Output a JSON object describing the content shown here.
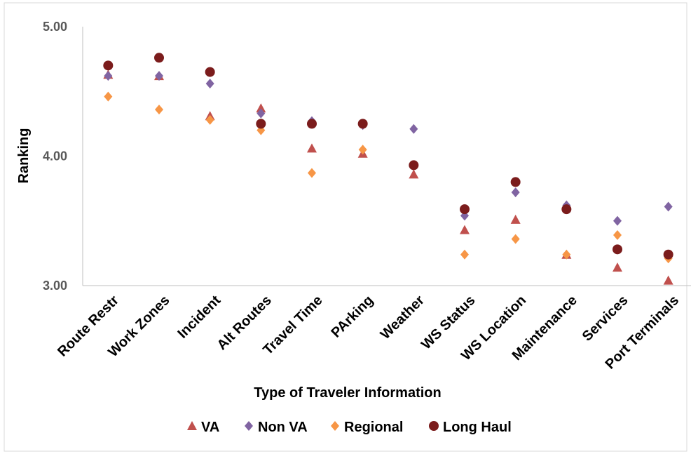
{
  "chart_data": {
    "type": "scatter",
    "categories": [
      "Route Restr",
      "Work Zones",
      "Incident",
      "Alt Routes",
      "Travel Time",
      "PArking",
      "Weather",
      "WS Status",
      "WS Location",
      "Maintenance",
      "Services",
      "Port Terminals"
    ],
    "series": [
      {
        "name": "VA",
        "marker": "triangle",
        "color": "#c0504d",
        "values": [
          4.63,
          4.62,
          4.31,
          4.37,
          4.06,
          4.02,
          3.86,
          3.43,
          3.51,
          3.24,
          3.14,
          3.04
        ]
      },
      {
        "name": "Non VA",
        "marker": "diamond",
        "color": "#8064a2",
        "values": [
          4.62,
          4.62,
          4.56,
          4.33,
          4.27,
          4.24,
          4.21,
          3.54,
          3.72,
          3.62,
          3.5,
          3.61
        ]
      },
      {
        "name": "Regional",
        "marker": "diamond",
        "color": "#f79646",
        "values": [
          4.46,
          4.36,
          4.28,
          4.2,
          3.87,
          4.05,
          3.93,
          3.24,
          3.36,
          3.24,
          3.39,
          3.21
        ]
      },
      {
        "name": "Long Haul",
        "marker": "circle",
        "color": "#7b1c1c",
        "values": [
          4.7,
          4.76,
          4.65,
          4.25,
          4.25,
          4.25,
          3.93,
          3.59,
          3.8,
          3.59,
          3.28,
          3.24
        ]
      }
    ],
    "xlabel": "Type of Traveler Information",
    "ylabel": "Ranking",
    "ylim": [
      3.0,
      5.0
    ],
    "yticks": [
      "3.00",
      "4.00",
      "5.00"
    ],
    "grid": false,
    "legend_position": "bottom"
  }
}
